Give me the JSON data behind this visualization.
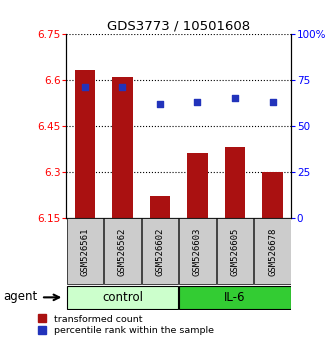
{
  "title": "GDS3773 / 10501608",
  "samples": [
    "GSM526561",
    "GSM526562",
    "GSM526602",
    "GSM526603",
    "GSM526605",
    "GSM526678"
  ],
  "red_values": [
    6.63,
    6.61,
    6.22,
    6.36,
    6.38,
    6.3
  ],
  "blue_values": [
    71,
    71,
    62,
    63,
    65,
    63
  ],
  "ylim_left": [
    6.15,
    6.75
  ],
  "ylim_right": [
    0,
    100
  ],
  "yticks_left": [
    6.15,
    6.3,
    6.45,
    6.6,
    6.75
  ],
  "yticks_right": [
    0,
    25,
    50,
    75,
    100
  ],
  "ytick_labels_left": [
    "6.15",
    "6.3",
    "6.45",
    "6.6",
    "6.75"
  ],
  "ytick_labels_right": [
    "0",
    "25",
    "50",
    "75",
    "100%"
  ],
  "control_label": "control",
  "il6_label": "IL-6",
  "agent_label": "agent",
  "legend_red": "transformed count",
  "legend_blue": "percentile rank within the sample",
  "bar_color": "#aa1111",
  "dot_color": "#2233bb",
  "control_bg": "#ccffcc",
  "il6_bg": "#33cc33",
  "sample_bg": "#cccccc",
  "bar_width": 0.55,
  "figsize": [
    3.31,
    3.54
  ],
  "dpi": 100
}
